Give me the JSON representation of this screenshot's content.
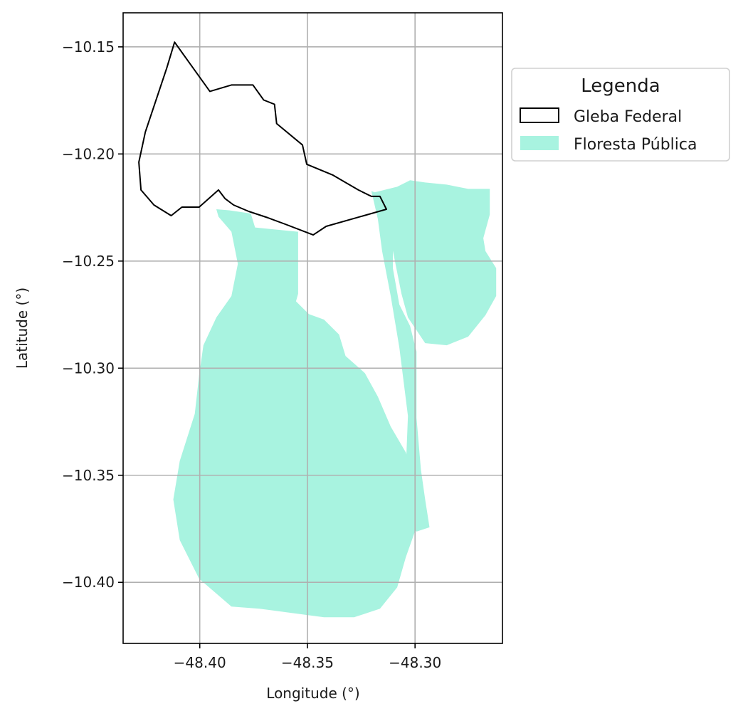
{
  "chart_data": {
    "type": "map",
    "xlabel": "Longitude (°)",
    "ylabel": "Latitude (°)",
    "xlim": [
      -48.4356,
      -48.2594
    ],
    "ylim": [
      -10.4285,
      -10.1341
    ],
    "x_ticks": [
      -48.4,
      -48.35,
      -48.3
    ],
    "x_tick_labels": [
      "−48.40",
      "−48.35",
      "−48.30"
    ],
    "y_ticks": [
      -10.15,
      -10.2,
      -10.25,
      -10.3,
      -10.35,
      -10.4
    ],
    "y_tick_labels": [
      "−10.15",
      "−10.20",
      "−10.25",
      "−10.30",
      "−10.35",
      "−10.40"
    ],
    "grid": true,
    "legend": {
      "title": "Legenda",
      "placement": "outside upper right",
      "entries": [
        {
          "label": "Gleba Federal",
          "style": "outline",
          "color": "#000000"
        },
        {
          "label": "Floresta Pública",
          "style": "fill",
          "color": "#a8f3e0"
        }
      ]
    },
    "colors": {
      "floresta_fill": "#a8f3e0",
      "gleba_stroke": "#000000",
      "grid": "#b0b0b0"
    },
    "gleba_federal": [
      [
        -48.4117,
        -10.1478
      ],
      [
        -48.4053,
        -10.1568
      ],
      [
        -48.3953,
        -10.1708
      ],
      [
        -48.3853,
        -10.1678
      ],
      [
        -48.3753,
        -10.1678
      ],
      [
        -48.3703,
        -10.1748
      ],
      [
        -48.3653,
        -10.1768
      ],
      [
        -48.3643,
        -10.1858
      ],
      [
        -48.3523,
        -10.1958
      ],
      [
        -48.3503,
        -10.2048
      ],
      [
        -48.3383,
        -10.2098
      ],
      [
        -48.3263,
        -10.2168
      ],
      [
        -48.3203,
        -10.2198
      ],
      [
        -48.3163,
        -10.2198
      ],
      [
        -48.3133,
        -10.2258
      ],
      [
        -48.3413,
        -10.2338
      ],
      [
        -48.3473,
        -10.2378
      ],
      [
        -48.3603,
        -10.2328
      ],
      [
        -48.3683,
        -10.2298
      ],
      [
        -48.3773,
        -10.2268
      ],
      [
        -48.3843,
        -10.2238
      ],
      [
        -48.3883,
        -10.2208
      ],
      [
        -48.3913,
        -10.2168
      ],
      [
        -48.4003,
        -10.2248
      ],
      [
        -48.4083,
        -10.2248
      ],
      [
        -48.4133,
        -10.2288
      ],
      [
        -48.4213,
        -10.2238
      ],
      [
        -48.4273,
        -10.2168
      ],
      [
        -48.4283,
        -10.2038
      ],
      [
        -48.4253,
        -10.1898
      ],
      [
        -48.4153,
        -10.1598
      ],
      [
        -48.4117,
        -10.1478
      ]
    ],
    "floresta_publica": [
      [
        [
          -48.3923,
          -10.2258
        ],
        [
          -48.3863,
          -10.2263
        ],
        [
          -48.3763,
          -10.2278
        ],
        [
          -48.3743,
          -10.2343
        ],
        [
          -48.3543,
          -10.2363
        ],
        [
          -48.3543,
          -10.2653
        ],
        [
          -48.3553,
          -10.2688
        ],
        [
          -48.3493,
          -10.2748
        ],
        [
          -48.3423,
          -10.2773
        ],
        [
          -48.3353,
          -10.2843
        ],
        [
          -48.3323,
          -10.2943
        ],
        [
          -48.3233,
          -10.3023
        ],
        [
          -48.3173,
          -10.3133
        ],
        [
          -48.3113,
          -10.3273
        ],
        [
          -48.3043,
          -10.3393
        ],
        [
          -48.3003,
          -10.3523
        ],
        [
          -48.2993,
          -10.3613
        ],
        [
          -48.2983,
          -10.3713
        ],
        [
          -48.3043,
          -10.3883
        ],
        [
          -48.3083,
          -10.4023
        ],
        [
          -48.3163,
          -10.4123
        ],
        [
          -48.3283,
          -10.4163
        ],
        [
          -48.3423,
          -10.4163
        ],
        [
          -48.3573,
          -10.4143
        ],
        [
          -48.3723,
          -10.4123
        ],
        [
          -48.3853,
          -10.4113
        ],
        [
          -48.4003,
          -10.3983
        ],
        [
          -48.4093,
          -10.3803
        ],
        [
          -48.4123,
          -10.3613
        ],
        [
          -48.4093,
          -10.3433
        ],
        [
          -48.4023,
          -10.3213
        ],
        [
          -48.4003,
          -10.3033
        ],
        [
          -48.3983,
          -10.2893
        ],
        [
          -48.3923,
          -10.2763
        ],
        [
          -48.3853,
          -10.2663
        ],
        [
          -48.3823,
          -10.2513
        ],
        [
          -48.3853,
          -10.2363
        ],
        [
          -48.3913,
          -10.2293
        ],
        [
          -48.3923,
          -10.2258
        ]
      ],
      [
        [
          -48.3203,
          -10.2183
        ],
        [
          -48.3153,
          -10.2218
        ],
        [
          -48.3133,
          -10.2278
        ],
        [
          -48.3123,
          -10.2353
        ],
        [
          -48.3093,
          -10.2503
        ],
        [
          -48.3063,
          -10.2653
        ],
        [
          -48.3033,
          -10.2763
        ],
        [
          -48.2953,
          -10.2883
        ],
        [
          -48.2853,
          -10.2893
        ],
        [
          -48.2753,
          -10.2853
        ],
        [
          -48.2673,
          -10.2753
        ],
        [
          -48.2623,
          -10.2663
        ],
        [
          -48.2623,
          -10.2533
        ],
        [
          -48.2673,
          -10.2453
        ],
        [
          -48.2683,
          -10.2393
        ],
        [
          -48.2653,
          -10.2283
        ],
        [
          -48.2653,
          -10.2163
        ],
        [
          -48.2753,
          -10.2163
        ],
        [
          -48.2853,
          -10.2143
        ],
        [
          -48.2953,
          -10.2133
        ],
        [
          -48.3023,
          -10.2123
        ],
        [
          -48.3083,
          -10.2153
        ],
        [
          -48.3203,
          -10.2183
        ]
      ],
      [
        [
          -48.3203,
          -10.2173
        ],
        [
          -48.3153,
          -10.2193
        ],
        [
          -48.3123,
          -10.2223
        ],
        [
          -48.3103,
          -10.2303
        ],
        [
          -48.3103,
          -10.2533
        ],
        [
          -48.3073,
          -10.2703
        ],
        [
          -48.3023,
          -10.2803
        ],
        [
          -48.2993,
          -10.2923
        ],
        [
          -48.2993,
          -10.3233
        ],
        [
          -48.2973,
          -10.3473
        ],
        [
          -48.2953,
          -10.3613
        ],
        [
          -48.2933,
          -10.3743
        ],
        [
          -48.2993,
          -10.3763
        ],
        [
          -48.3063,
          -10.3713
        ],
        [
          -48.3063,
          -10.3633
        ],
        [
          -48.3043,
          -10.3473
        ],
        [
          -48.3033,
          -10.3223
        ],
        [
          -48.3073,
          -10.2903
        ],
        [
          -48.3113,
          -10.2663
        ],
        [
          -48.3153,
          -10.2453
        ],
        [
          -48.3173,
          -10.2303
        ],
        [
          -48.3203,
          -10.2173
        ]
      ],
      [
        [
          -48.3093,
          -10.3963
        ],
        [
          -48.3163,
          -10.4023
        ],
        [
          -48.3233,
          -10.4103
        ],
        [
          -48.3273,
          -10.4143
        ],
        [
          -48.3323,
          -10.4143
        ],
        [
          -48.3253,
          -10.4083
        ],
        [
          -48.3163,
          -10.4023
        ],
        [
          -48.3093,
          -10.3963
        ]
      ]
    ]
  }
}
